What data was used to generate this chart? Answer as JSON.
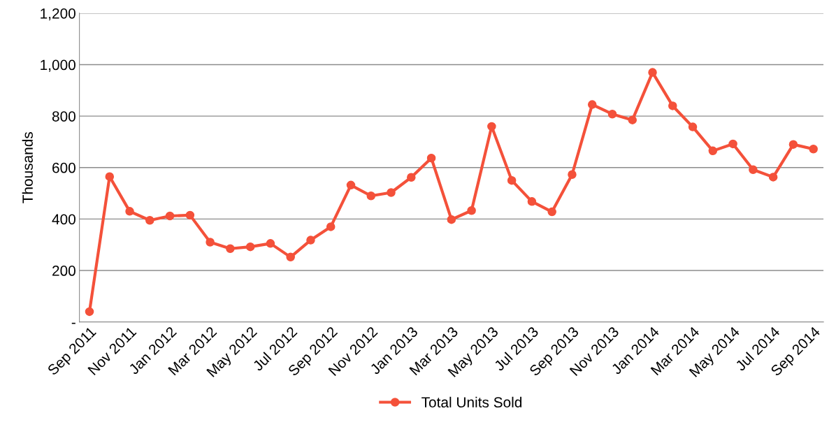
{
  "chart_data": {
    "type": "line",
    "ylabel": "Thousands",
    "categories": [
      "Sep 2011",
      null,
      "Nov 2011",
      null,
      "Jan 2012",
      null,
      "Mar 2012",
      null,
      "May 2012",
      null,
      "Jul 2012",
      null,
      "Sep 2012",
      null,
      "Nov 2012",
      null,
      "Jan 2013",
      null,
      "Mar 2013",
      null,
      "May 2013",
      null,
      "Jul 2013",
      null,
      "Sep 2013",
      null,
      "Nov 2013",
      null,
      "Jan 2014",
      null,
      "Mar 2014",
      null,
      "May 2014",
      null,
      "Jul 2014",
      null,
      "Sep 2014"
    ],
    "series": [
      {
        "name": "Total Units Sold",
        "color": "#f4513a",
        "values": [
          40,
          565,
          430,
          395,
          412,
          415,
          310,
          285,
          292,
          305,
          252,
          318,
          370,
          532,
          490,
          503,
          562,
          637,
          398,
          433,
          760,
          550,
          468,
          428,
          573,
          845,
          808,
          785,
          970,
          840,
          758,
          665,
          692,
          592,
          563,
          690,
          672
        ]
      }
    ],
    "ylim": [
      0,
      1200
    ],
    "yticks": [
      {
        "value": 0,
        "label": "-"
      },
      200,
      400,
      600,
      800,
      {
        "value": 1000,
        "label": "1,000"
      },
      {
        "value": 1200,
        "label": "1,200"
      }
    ],
    "grid": "y",
    "legend": "bottom",
    "marker": "circle",
    "line_style": "solid"
  }
}
